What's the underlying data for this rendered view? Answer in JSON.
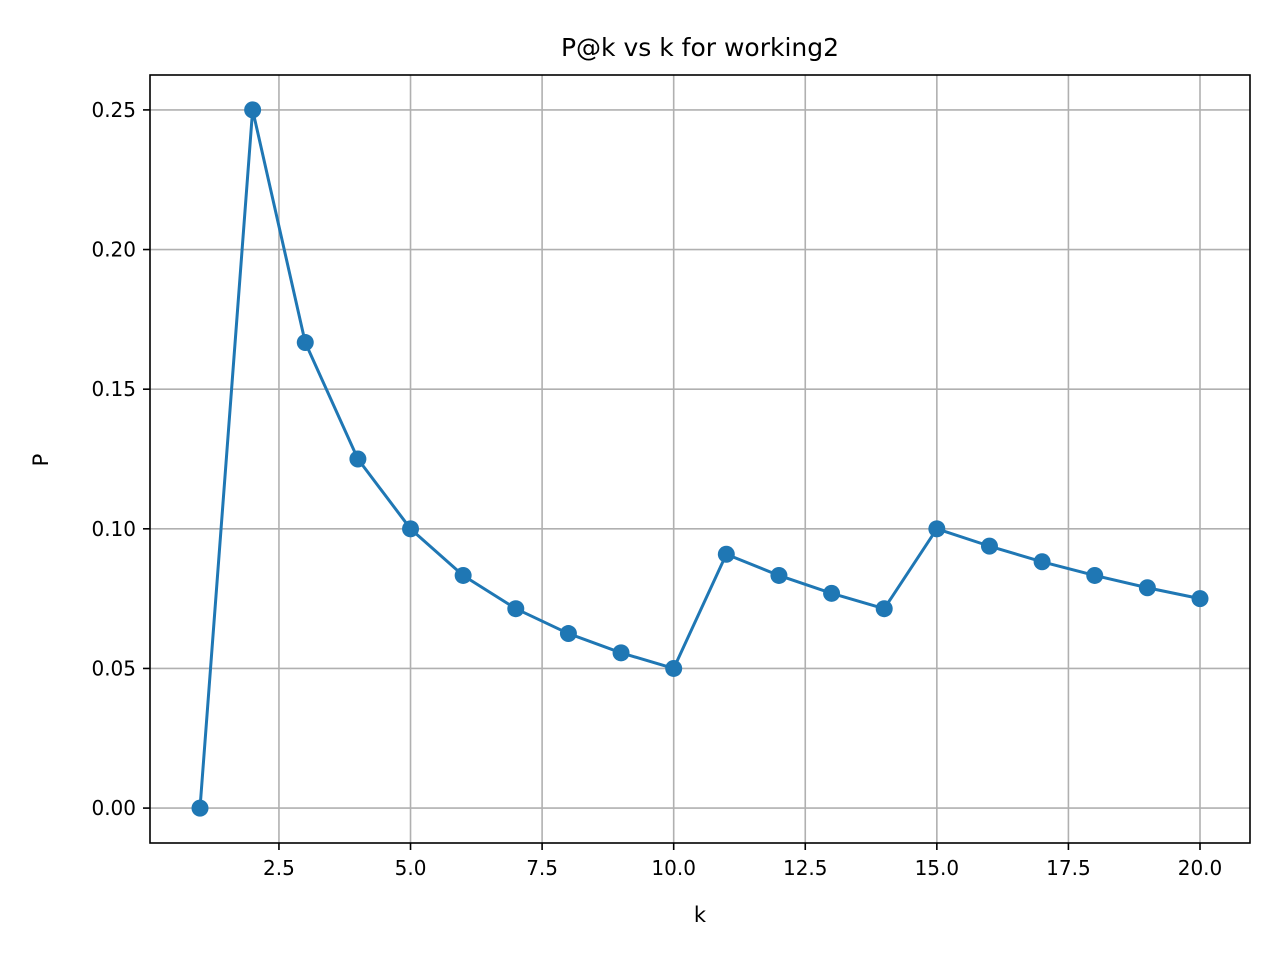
{
  "chart_data": {
    "type": "line",
    "title": "P@k vs k for working2",
    "xlabel": "k",
    "ylabel": "P",
    "xlim": [
      0.05,
      20.95
    ],
    "ylim": [
      -0.0125,
      0.2625
    ],
    "xticks": [
      2.5,
      5.0,
      7.5,
      10.0,
      12.5,
      15.0,
      17.5,
      20.0
    ],
    "xtick_labels": [
      "2.5",
      "5.0",
      "7.5",
      "10.0",
      "12.5",
      "15.0",
      "17.5",
      "20.0"
    ],
    "yticks": [
      0.0,
      0.05,
      0.1,
      0.15,
      0.2,
      0.25
    ],
    "ytick_labels": [
      "0.00",
      "0.05",
      "0.10",
      "0.15",
      "0.20",
      "0.25"
    ],
    "grid": true,
    "marker": "circle",
    "color": "#1f77b4",
    "x": [
      1,
      2,
      3,
      4,
      5,
      6,
      7,
      8,
      9,
      10,
      11,
      12,
      13,
      14,
      15,
      16,
      17,
      18,
      19,
      20
    ],
    "y": [
      0.0,
      0.25,
      0.1667,
      0.125,
      0.1,
      0.0833,
      0.0714,
      0.0625,
      0.0556,
      0.05,
      0.0909,
      0.0833,
      0.0769,
      0.0714,
      0.1,
      0.0938,
      0.0882,
      0.0833,
      0.0789,
      0.075
    ]
  }
}
